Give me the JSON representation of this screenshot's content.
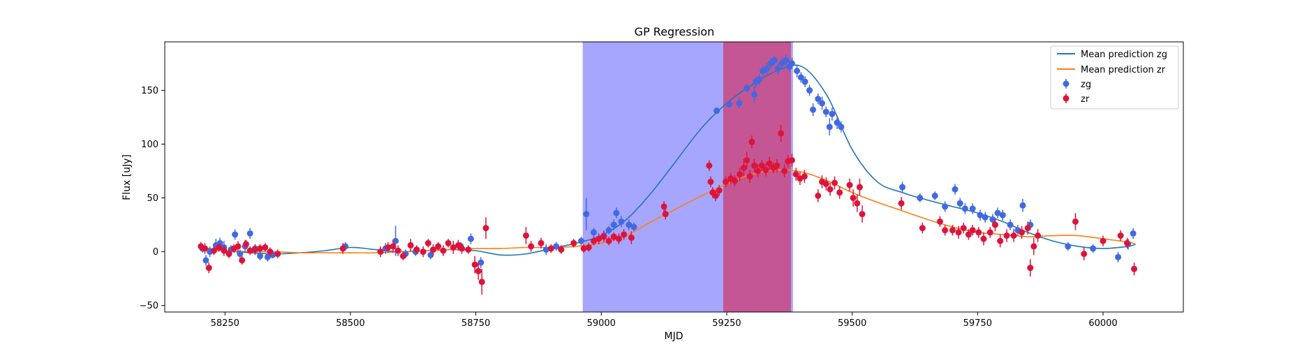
{
  "chart_data": {
    "type": "scatter",
    "title": "GP Regression",
    "xlabel": "MJD",
    "ylabel": "Flux [uJy]",
    "xlim": [
      58130,
      60160
    ],
    "ylim": [
      -56,
      195
    ],
    "xticks": [
      58250,
      58500,
      58750,
      59000,
      59250,
      59500,
      59750,
      60000
    ],
    "yticks": [
      -50,
      0,
      50,
      100,
      150
    ],
    "legend_position": "top-right",
    "grid": false,
    "colors": {
      "mean_zg": "#1f77b4",
      "mean_zr": "#ff7f0e",
      "zg": "#4169e1",
      "zr": "#dc143c",
      "span_blue": "#0000ff",
      "span_red": "#dc143c"
    },
    "shaded_regions": [
      {
        "x0": 58963,
        "x1": 59382,
        "color": "#0000ff",
        "alpha": 0.35
      },
      {
        "x0": 59243,
        "x1": 59378,
        "color": "#dc143c",
        "alpha": 0.55
      }
    ],
    "series": [
      {
        "name": "Mean prediction zg",
        "kind": "line",
        "x": [
          58200,
          58250,
          58300,
          58350,
          58400,
          58450,
          58500,
          58550,
          58600,
          58650,
          58700,
          58750,
          58800,
          58850,
          58900,
          58950,
          59000,
          59050,
          59100,
          59150,
          59200,
          59250,
          59300,
          59350,
          59400,
          59450,
          59500,
          59550,
          59600,
          59650,
          59700,
          59750,
          59800,
          59850,
          59900,
          59950,
          60000,
          60050,
          60065
        ],
        "y": [
          4,
          1,
          -1,
          -2,
          -1,
          1,
          4,
          2,
          0,
          1,
          2,
          1,
          -3,
          -2,
          3,
          8,
          15,
          30,
          55,
          85,
          115,
          138,
          155,
          168,
          172,
          145,
          95,
          65,
          55,
          48,
          42,
          36,
          28,
          18,
          10,
          5,
          3,
          5,
          7
        ]
      },
      {
        "name": "Mean prediction zr",
        "kind": "line",
        "x": [
          58200,
          58250,
          58300,
          58350,
          58400,
          58450,
          58500,
          58550,
          58600,
          58650,
          58700,
          58750,
          58800,
          58850,
          58900,
          58950,
          59000,
          59050,
          59100,
          59150,
          59200,
          59250,
          59300,
          59350,
          59400,
          59450,
          59500,
          59550,
          59600,
          59650,
          59700,
          59750,
          59800,
          59850,
          59900,
          59950,
          60000,
          60050,
          60065
        ],
        "y": [
          2,
          1,
          0,
          0,
          -1,
          -1,
          -1,
          -1,
          0,
          1,
          2,
          3,
          3,
          4,
          4,
          5,
          8,
          15,
          28,
          40,
          52,
          63,
          72,
          76,
          74,
          66,
          55,
          46,
          38,
          30,
          23,
          18,
          16,
          14,
          15,
          15,
          12,
          9,
          7
        ]
      },
      {
        "name": "zg",
        "kind": "errorbar",
        "points": [
          [
            58205,
            3,
            4
          ],
          [
            58212,
            -8,
            5
          ],
          [
            58220,
            0,
            5
          ],
          [
            58232,
            6,
            6
          ],
          [
            58240,
            8,
            5
          ],
          [
            58248,
            4,
            6
          ],
          [
            58262,
            2,
            4
          ],
          [
            58270,
            16,
            5
          ],
          [
            58280,
            -2,
            4
          ],
          [
            58290,
            5,
            6
          ],
          [
            58300,
            17,
            5
          ],
          [
            58310,
            3,
            4
          ],
          [
            58320,
            -4,
            4
          ],
          [
            58335,
            -5,
            4
          ],
          [
            58345,
            -3,
            3
          ],
          [
            58490,
            5,
            4
          ],
          [
            58570,
            3,
            5
          ],
          [
            58590,
            10,
            14
          ],
          [
            58610,
            -2,
            4
          ],
          [
            58630,
            0,
            4
          ],
          [
            58660,
            -3,
            4
          ],
          [
            58720,
            5,
            4
          ],
          [
            58740,
            12,
            5
          ],
          [
            58760,
            -10,
            5
          ],
          [
            58890,
            2,
            5
          ],
          [
            58910,
            5,
            4
          ],
          [
            58960,
            10,
            4
          ],
          [
            58970,
            35,
            15
          ],
          [
            58985,
            18,
            4
          ],
          [
            59005,
            15,
            5
          ],
          [
            59015,
            20,
            4
          ],
          [
            59025,
            25,
            5
          ],
          [
            59030,
            36,
            5
          ],
          [
            59040,
            28,
            5
          ],
          [
            59055,
            25,
            5
          ],
          [
            59065,
            23,
            4
          ],
          [
            59230,
            131,
            3
          ],
          [
            59255,
            137,
            3
          ],
          [
            59275,
            138,
            5
          ],
          [
            59290,
            152,
            4
          ],
          [
            59305,
            146,
            8
          ],
          [
            59308,
            158,
            5
          ],
          [
            59315,
            160,
            5
          ],
          [
            59322,
            168,
            5
          ],
          [
            59330,
            170,
            5
          ],
          [
            59338,
            175,
            5
          ],
          [
            59345,
            178,
            4
          ],
          [
            59352,
            170,
            5
          ],
          [
            59360,
            175,
            5
          ],
          [
            59368,
            178,
            5
          ],
          [
            59375,
            172,
            5
          ],
          [
            59380,
            175,
            5
          ],
          [
            59390,
            168,
            6
          ],
          [
            59398,
            162,
            5
          ],
          [
            59406,
            158,
            5
          ],
          [
            59415,
            150,
            5
          ],
          [
            59422,
            132,
            6
          ],
          [
            59432,
            142,
            5
          ],
          [
            59440,
            138,
            6
          ],
          [
            59448,
            130,
            5
          ],
          [
            59455,
            116,
            8
          ],
          [
            59460,
            128,
            6
          ],
          [
            59470,
            120,
            6
          ],
          [
            59478,
            116,
            5
          ],
          [
            59600,
            60,
            5
          ],
          [
            59635,
            50,
            4
          ],
          [
            59665,
            52,
            4
          ],
          [
            59685,
            42,
            5
          ],
          [
            59705,
            58,
            5
          ],
          [
            59715,
            45,
            5
          ],
          [
            59725,
            40,
            5
          ],
          [
            59740,
            40,
            5
          ],
          [
            59755,
            34,
            5
          ],
          [
            59765,
            32,
            5
          ],
          [
            59780,
            30,
            5
          ],
          [
            59790,
            36,
            5
          ],
          [
            59800,
            34,
            5
          ],
          [
            59815,
            25,
            5
          ],
          [
            59830,
            20,
            5
          ],
          [
            59840,
            43,
            6
          ],
          [
            59855,
            25,
            5
          ],
          [
            59930,
            5,
            4
          ],
          [
            59980,
            3,
            4
          ],
          [
            60030,
            -5,
            5
          ],
          [
            60050,
            7,
            5
          ],
          [
            60060,
            17,
            5
          ]
        ]
      },
      {
        "name": "zr",
        "kind": "errorbar",
        "points": [
          [
            58202,
            5,
            4
          ],
          [
            58210,
            3,
            5
          ],
          [
            58218,
            -15,
            5
          ],
          [
            58228,
            1,
            4
          ],
          [
            58238,
            4,
            4
          ],
          [
            58248,
            1,
            5
          ],
          [
            58258,
            -2,
            4
          ],
          [
            58268,
            3,
            4
          ],
          [
            58276,
            5,
            5
          ],
          [
            58284,
            -8,
            4
          ],
          [
            58292,
            7,
            4
          ],
          [
            58300,
            1,
            4
          ],
          [
            58310,
            2,
            5
          ],
          [
            58320,
            3,
            4
          ],
          [
            58330,
            4,
            4
          ],
          [
            58340,
            0,
            4
          ],
          [
            58355,
            -2,
            4
          ],
          [
            58485,
            3,
            5
          ],
          [
            58560,
            0,
            5
          ],
          [
            58575,
            4,
            5
          ],
          [
            58585,
            5,
            6
          ],
          [
            58595,
            1,
            5
          ],
          [
            58605,
            -4,
            4
          ],
          [
            58620,
            6,
            6
          ],
          [
            58632,
            2,
            4
          ],
          [
            58645,
            0,
            5
          ],
          [
            58655,
            8,
            4
          ],
          [
            58665,
            2,
            5
          ],
          [
            58675,
            5,
            4
          ],
          [
            58685,
            1,
            5
          ],
          [
            58695,
            8,
            4
          ],
          [
            58705,
            4,
            6
          ],
          [
            58715,
            6,
            5
          ],
          [
            58722,
            3,
            5
          ],
          [
            58735,
            2,
            4
          ],
          [
            58748,
            -12,
            8
          ],
          [
            58755,
            -18,
            8
          ],
          [
            58762,
            -28,
            12
          ],
          [
            58770,
            22,
            10
          ],
          [
            58850,
            15,
            8
          ],
          [
            58860,
            5,
            5
          ],
          [
            58880,
            8,
            5
          ],
          [
            58900,
            3,
            4
          ],
          [
            58920,
            2,
            4
          ],
          [
            58945,
            8,
            4
          ],
          [
            58965,
            3,
            4
          ],
          [
            58975,
            4,
            4
          ],
          [
            58985,
            10,
            4
          ],
          [
            58995,
            12,
            5
          ],
          [
            59005,
            14,
            5
          ],
          [
            59015,
            10,
            4
          ],
          [
            59025,
            14,
            4
          ],
          [
            59035,
            12,
            5
          ],
          [
            59045,
            16,
            5
          ],
          [
            59060,
            13,
            6
          ],
          [
            59125,
            42,
            5
          ],
          [
            59128,
            35,
            5
          ],
          [
            59215,
            80,
            5
          ],
          [
            59218,
            65,
            5
          ],
          [
            59222,
            55,
            5
          ],
          [
            59228,
            52,
            5
          ],
          [
            59235,
            57,
            5
          ],
          [
            59248,
            65,
            5
          ],
          [
            59258,
            68,
            5
          ],
          [
            59266,
            66,
            5
          ],
          [
            59276,
            72,
            6
          ],
          [
            59284,
            78,
            8
          ],
          [
            59290,
            85,
            8
          ],
          [
            59296,
            70,
            6
          ],
          [
            59300,
            102,
            6
          ],
          [
            59305,
            80,
            6
          ],
          [
            59312,
            75,
            6
          ],
          [
            59320,
            80,
            5
          ],
          [
            59328,
            76,
            6
          ],
          [
            59335,
            82,
            6
          ],
          [
            59343,
            78,
            5
          ],
          [
            59350,
            80,
            6
          ],
          [
            59358,
            110,
            8
          ],
          [
            59365,
            75,
            6
          ],
          [
            59372,
            84,
            6
          ],
          [
            59380,
            85,
            6
          ],
          [
            59388,
            72,
            6
          ],
          [
            59396,
            68,
            6
          ],
          [
            59405,
            70,
            6
          ],
          [
            59432,
            52,
            6
          ],
          [
            59440,
            65,
            6
          ],
          [
            59448,
            63,
            6
          ],
          [
            59456,
            58,
            6
          ],
          [
            59465,
            64,
            6
          ],
          [
            59475,
            55,
            6
          ],
          [
            59495,
            62,
            6
          ],
          [
            59502,
            50,
            8
          ],
          [
            59510,
            45,
            8
          ],
          [
            59515,
            60,
            8
          ],
          [
            59520,
            35,
            8
          ],
          [
            59598,
            45,
            6
          ],
          [
            59640,
            22,
            5
          ],
          [
            59675,
            28,
            5
          ],
          [
            59685,
            20,
            5
          ],
          [
            59700,
            20,
            5
          ],
          [
            59712,
            18,
            6
          ],
          [
            59722,
            22,
            5
          ],
          [
            59732,
            16,
            5
          ],
          [
            59740,
            20,
            5
          ],
          [
            59752,
            18,
            5
          ],
          [
            59762,
            12,
            6
          ],
          [
            59775,
            18,
            5
          ],
          [
            59785,
            25,
            6
          ],
          [
            59795,
            10,
            6
          ],
          [
            59808,
            15,
            6
          ],
          [
            59822,
            15,
            6
          ],
          [
            59838,
            18,
            6
          ],
          [
            59850,
            22,
            6
          ],
          [
            59855,
            -15,
            8
          ],
          [
            59862,
            5,
            8
          ],
          [
            59870,
            15,
            6
          ],
          [
            59945,
            28,
            8
          ],
          [
            59962,
            -2,
            6
          ],
          [
            60000,
            10,
            5
          ],
          [
            60035,
            15,
            5
          ],
          [
            60048,
            8,
            5
          ],
          [
            60062,
            -16,
            6
          ]
        ]
      }
    ]
  }
}
